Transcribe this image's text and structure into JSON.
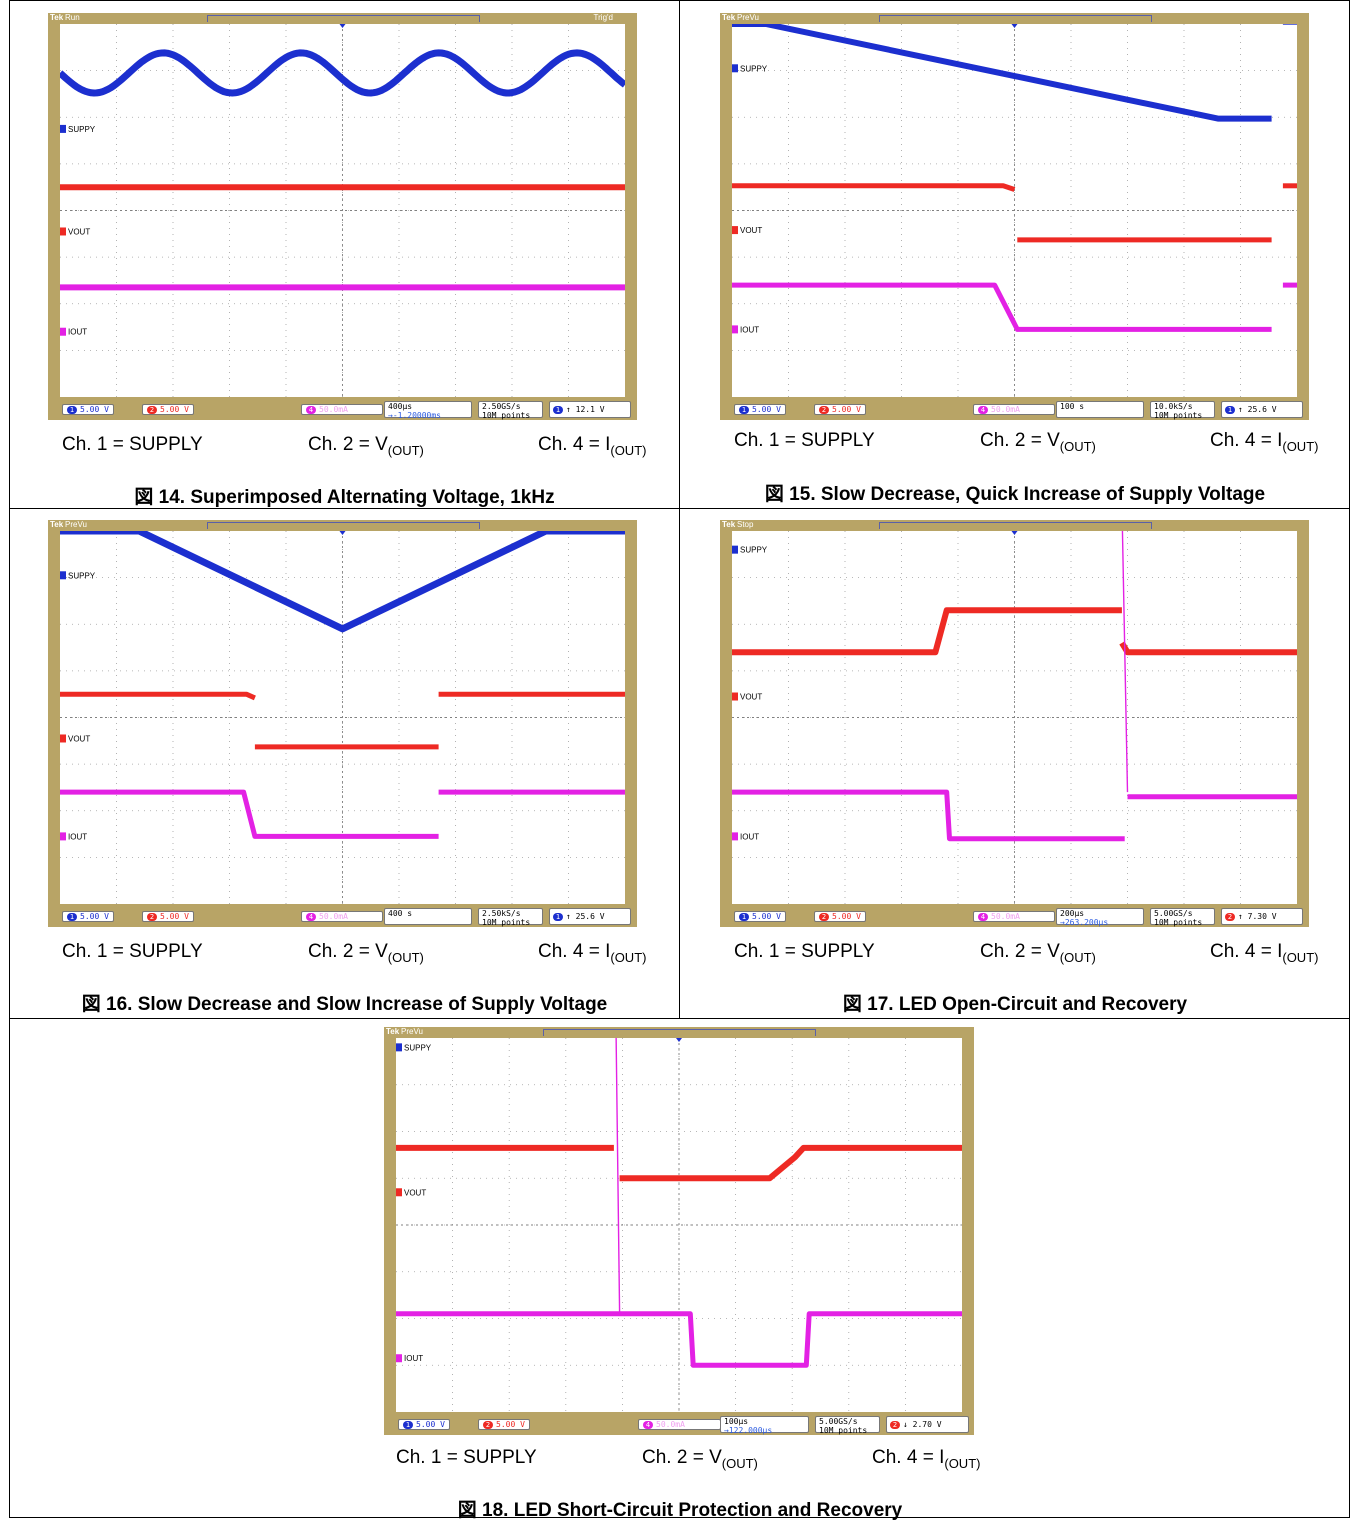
{
  "colors": {
    "ch1": "#1c2fcf",
    "ch2": "#ee2a24",
    "ch4": "#e321e4",
    "bezel": "#b8a466",
    "grid": "#a0a0a0"
  },
  "chart_data": [
    {
      "type": "line",
      "figure": "図 14. Superimposed Alternating Voltage, 1kHz",
      "status": "Run",
      "trigger_state": "Trig'd",
      "channels": {
        "ch1": "SUPPY",
        "ch2": "VOUT",
        "ch4": "IOUT"
      },
      "scales": {
        "ch1": "5.00 V",
        "ch2": "5.00 V",
        "ch4": "50.0mA"
      },
      "horizontal": "400µs",
      "delay": "→-1.20000ms",
      "sample_rate": "2.50GS/s",
      "record_length": "10M points",
      "trigger": {
        "source": "1",
        "slope": "rising",
        "level": "12.1 V"
      },
      "x_range_div": [
        0,
        10
      ],
      "y_range_div": [
        0,
        8
      ],
      "series": [
        {
          "name": "SUPPY",
          "kind": "sine",
          "center_div": 6.95,
          "amplitude_div": 0.43,
          "cycles": 4.1,
          "width": 7
        },
        {
          "name": "VOUT",
          "kind": "segments",
          "points": [
            [
              0,
              4.5
            ],
            [
              10,
              4.5
            ]
          ],
          "width": 6
        },
        {
          "name": "IOUT",
          "kind": "segments",
          "points": [
            [
              0,
              2.35
            ],
            [
              10,
              2.35
            ]
          ],
          "width": 6
        }
      ]
    },
    {
      "type": "line",
      "figure": "図 15. Slow Decrease, Quick Increase of Supply Voltage",
      "status": "PreVu",
      "trigger_state": "",
      "channels": {
        "ch1": "SUPPY",
        "ch2": "VOUT",
        "ch4": "IOUT"
      },
      "scales": {
        "ch1": "5.00 V",
        "ch2": "5.00 V",
        "ch4": "50.0mA"
      },
      "horizontal": "100 s",
      "delay": "",
      "sample_rate": "10.0kS/s",
      "record_length": "10M points",
      "trigger": {
        "source": "1",
        "slope": "rising",
        "level": "25.6 V"
      },
      "x_range_div": [
        0,
        10
      ],
      "y_range_div": [
        0,
        8
      ],
      "series": [
        {
          "name": "SUPPY",
          "kind": "segments",
          "points": [
            [
              0,
              8.0
            ],
            [
              0.6,
              8.0
            ],
            [
              8.6,
              5.97
            ],
            [
              9.55,
              5.97
            ]
          ],
          "extra": [
            [
              9.75,
              8.05
            ],
            [
              10,
              8.05
            ]
          ],
          "width": 6
        },
        {
          "name": "VOUT",
          "kind": "segments",
          "points": [
            [
              0,
              4.53
            ],
            [
              4.8,
              4.53
            ],
            [
              5.0,
              4.45
            ]
          ],
          "extra": [
            [
              5.05,
              3.37
            ],
            [
              9.55,
              3.37
            ]
          ],
          "extra2": [
            [
              9.75,
              4.53
            ],
            [
              10,
              4.53
            ]
          ],
          "width": 5
        },
        {
          "name": "IOUT",
          "kind": "segments",
          "points": [
            [
              0,
              2.4
            ],
            [
              4.65,
              2.4
            ],
            [
              5.05,
              1.45
            ],
            [
              9.55,
              1.45
            ]
          ],
          "extra": [
            [
              9.75,
              2.4
            ],
            [
              10,
              2.4
            ]
          ],
          "width": 5
        }
      ]
    },
    {
      "type": "line",
      "figure": "図 16. Slow Decrease and Slow Increase of Supply Voltage",
      "status": "PreVu",
      "trigger_state": "",
      "channels": {
        "ch1": "SUPPY",
        "ch2": "VOUT",
        "ch4": "IOUT"
      },
      "scales": {
        "ch1": "5.00 V",
        "ch2": "5.00 V",
        "ch4": "50.0mA"
      },
      "horizontal": "400 s",
      "delay": "",
      "sample_rate": "2.50kS/s",
      "record_length": "10M points",
      "trigger": {
        "source": "1",
        "slope": "rising",
        "level": "25.6 V"
      },
      "x_range_div": [
        0,
        10
      ],
      "y_range_div": [
        0,
        8
      ],
      "series": [
        {
          "name": "SUPPY",
          "kind": "segments",
          "points": [
            [
              0,
              8.0
            ],
            [
              1.4,
              8.0
            ],
            [
              5.0,
              5.9
            ],
            [
              8.6,
              8.0
            ],
            [
              10,
              8.0
            ]
          ],
          "width": 7
        },
        {
          "name": "VOUT",
          "kind": "segments",
          "points": [
            [
              0,
              4.5
            ],
            [
              3.3,
              4.5
            ],
            [
              3.45,
              4.42
            ]
          ],
          "extra": [
            [
              3.45,
              3.37
            ],
            [
              6.7,
              3.37
            ]
          ],
          "extra2": [
            [
              6.7,
              4.5
            ],
            [
              10,
              4.5
            ]
          ],
          "width": 5
        },
        {
          "name": "IOUT",
          "kind": "segments",
          "points": [
            [
              0,
              2.4
            ],
            [
              3.25,
              2.4
            ],
            [
              3.45,
              1.45
            ],
            [
              6.7,
              1.45
            ]
          ],
          "extra": [
            [
              6.7,
              2.4
            ],
            [
              10,
              2.4
            ]
          ],
          "width": 5
        }
      ]
    },
    {
      "type": "line",
      "figure": "図 17. LED Open-Circuit and Recovery",
      "status": "Stop",
      "trigger_state": "",
      "channels": {
        "ch1": "SUPPY",
        "ch2": "VOUT",
        "ch4": "IOUT"
      },
      "scales": {
        "ch1": "5.00 V",
        "ch2": "5.00 V",
        "ch4": "50.0mA"
      },
      "horizontal": "200µs",
      "delay": "→263.200µs",
      "sample_rate": "5.00GS/s",
      "record_length": "10M points",
      "trigger": {
        "source": "2",
        "slope": "rising",
        "level": "7.30 V"
      },
      "x_range_div": [
        0,
        10
      ],
      "y_range_div": [
        0,
        8
      ],
      "series": [
        {
          "name": "SUPPY",
          "kind": "segments",
          "points": [
            [
              0,
              8.55
            ],
            [
              10,
              8.55
            ]
          ],
          "width": 6
        },
        {
          "name": "VOUT",
          "kind": "segments",
          "points": [
            [
              0,
              5.4
            ],
            [
              3.6,
              5.4
            ],
            [
              3.8,
              6.3
            ],
            [
              6.9,
              6.3
            ]
          ],
          "extra": [
            [
              6.9,
              5.6
            ],
            [
              7.0,
              5.4
            ],
            [
              10,
              5.4
            ]
          ],
          "width": 6
        },
        {
          "name": "IOUT",
          "kind": "segments",
          "points": [
            [
              0,
              2.4
            ],
            [
              3.8,
              2.4
            ],
            [
              3.85,
              1.4
            ],
            [
              6.95,
              1.4
            ]
          ],
          "extra": [
            [
              7.0,
              2.3
            ],
            [
              10,
              2.3
            ]
          ],
          "spike": [
            [
              6.9,
              8.6
            ],
            [
              7.0,
              2.4
            ]
          ],
          "width": 5
        }
      ]
    },
    {
      "type": "line",
      "figure": "図 18. LED Short-Circuit Protection and Recovery",
      "status": "PreVu",
      "trigger_state": "",
      "channels": {
        "ch1": "SUPPY",
        "ch2": "VOUT",
        "ch4": "IOUT"
      },
      "scales": {
        "ch1": "5.00 V",
        "ch2": "5.00 V",
        "ch4": "50.0mA"
      },
      "horizontal": "100µs",
      "delay": "→122.000µs",
      "sample_rate": "5.00GS/s",
      "record_length": "10M points",
      "trigger": {
        "source": "2",
        "slope": "falling",
        "level": "2.70 V"
      },
      "x_range_div": [
        0,
        10
      ],
      "y_range_div": [
        0,
        8
      ],
      "series": [
        {
          "name": "SUPPY",
          "kind": "segments",
          "points": [
            [
              0,
              8.75
            ],
            [
              10,
              8.75
            ]
          ],
          "width": 7
        },
        {
          "name": "VOUT",
          "kind": "segments",
          "points": [
            [
              0,
              5.65
            ],
            [
              3.85,
              5.65
            ]
          ],
          "extra": [
            [
              3.95,
              5.0
            ],
            [
              6.6,
              5.0
            ],
            [
              7.05,
              5.45
            ],
            [
              7.2,
              5.65
            ],
            [
              10,
              5.65
            ]
          ],
          "width": 6
        },
        {
          "name": "IOUT",
          "kind": "segments",
          "points": [
            [
              0,
              2.1
            ],
            [
              3.9,
              2.1
            ],
            [
              5.2,
              2.1
            ],
            [
              5.25,
              1.0
            ],
            [
              7.25,
              1.0
            ],
            [
              7.3,
              2.1
            ],
            [
              10,
              2.1
            ]
          ],
          "spike": [
            [
              3.88,
              8.9
            ],
            [
              3.95,
              2.1
            ]
          ],
          "width": 5
        }
      ]
    }
  ],
  "legends": [
    {
      "ch1": "Ch. 1 = SUPPLY",
      "ch2": "Ch. 2 = V",
      "ch2_sub": "(OUT)",
      "ch4": "Ch. 4 = I",
      "ch4_sub": "(OUT)"
    },
    {
      "ch1": "Ch. 1 = SUPPLY",
      "ch2": "Ch. 2 = V",
      "ch2_sub": "(OUT)",
      "ch4": "Ch. 4 = I",
      "ch4_sub": "(OUT)"
    },
    {
      "ch1": "Ch. 1 = SUPPLY",
      "ch2": "Ch. 2 = V",
      "ch2_sub": "(OUT)",
      "ch4": "Ch. 4 = I",
      "ch4_sub": "(OUT)"
    },
    {
      "ch1": "Ch. 1 = SUPPLY",
      "ch2": "Ch. 2 = V",
      "ch2_sub": "(OUT)",
      "ch4": "Ch. 4 = I",
      "ch4_sub": "(OUT)"
    },
    {
      "ch1": "Ch. 1 = SUPPLY",
      "ch2": "Ch. 2 = V",
      "ch2_sub": "(OUT)",
      "ch4": "Ch. 4 = I",
      "ch4_sub": "(OUT)"
    }
  ],
  "captions": [
    "図 14. Superimposed Alternating Voltage, 1kHz",
    "図 15. Slow Decrease, Quick Increase of Supply Voltage",
    "図 16. Slow Decrease and Slow Increase of Supply Voltage",
    "図 17. LED Open-Circuit and Recovery",
    "図 18. LED Short-Circuit Protection and Recovery"
  ]
}
